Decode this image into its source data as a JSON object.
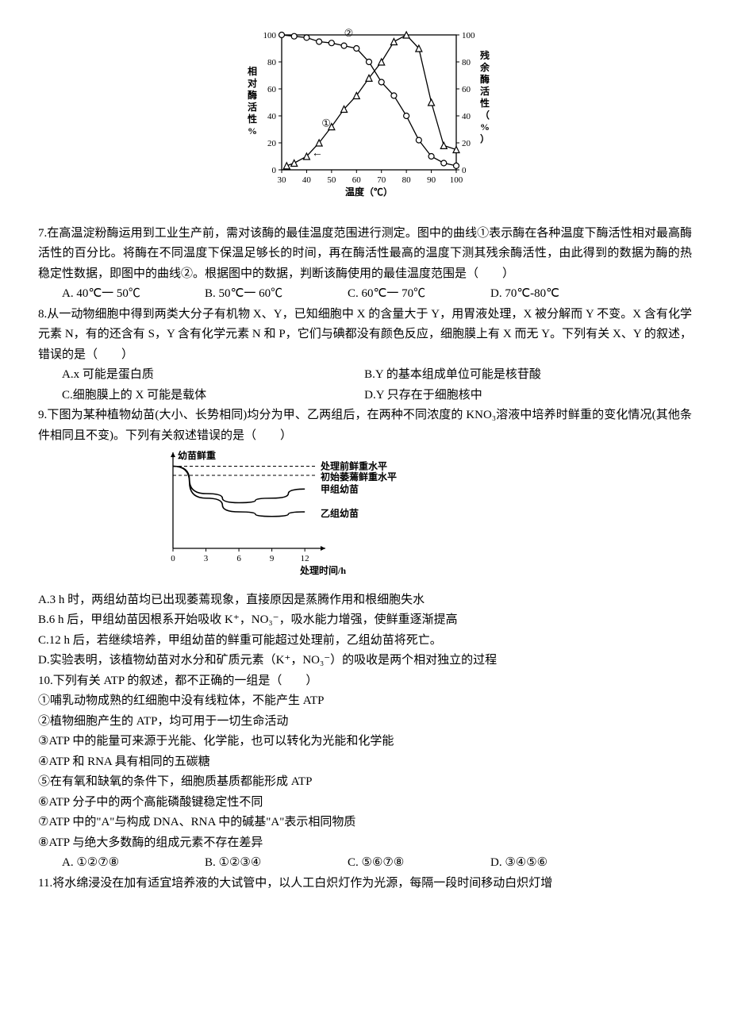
{
  "chart1": {
    "type": "line-dual-axis",
    "x_label": "温度（℃）",
    "y_left_label": "相对酶活性%",
    "y_right_label": "残余酶活性（%）",
    "x_range": [
      30,
      100
    ],
    "x_ticks": [
      30,
      40,
      50,
      60,
      70,
      80,
      90,
      100
    ],
    "y_range": [
      0,
      100
    ],
    "y_ticks": [
      0,
      20,
      40,
      60,
      80,
      100
    ],
    "series1_marker": "triangle",
    "series1_label": "①",
    "series1_points": [
      [
        32,
        3
      ],
      [
        35,
        5
      ],
      [
        40,
        10
      ],
      [
        45,
        20
      ],
      [
        50,
        32
      ],
      [
        55,
        45
      ],
      [
        60,
        55
      ],
      [
        65,
        68
      ],
      [
        70,
        80
      ],
      [
        75,
        95
      ],
      [
        80,
        100
      ],
      [
        85,
        90
      ],
      [
        90,
        50
      ],
      [
        95,
        18
      ],
      [
        100,
        15
      ]
    ],
    "series2_marker": "circle",
    "series2_label": "②",
    "series2_points": [
      [
        30,
        100
      ],
      [
        35,
        99
      ],
      [
        40,
        98
      ],
      [
        45,
        95
      ],
      [
        50,
        94
      ],
      [
        55,
        92
      ],
      [
        60,
        90
      ],
      [
        65,
        80
      ],
      [
        70,
        65
      ],
      [
        75,
        55
      ],
      [
        80,
        40
      ],
      [
        85,
        22
      ],
      [
        90,
        10
      ],
      [
        95,
        5
      ],
      [
        100,
        3
      ]
    ],
    "arrow_annotation": "←",
    "line_color": "#000000",
    "background_color": "#ffffff",
    "axis_fontsize": 11
  },
  "q7": {
    "stem": "7.在高温淀粉酶运用到工业生产前，需对该酶的最佳温度范围进行测定。图中的曲线①表示酶在各种温度下酶活性相对最高酶活性的百分比。将酶在不同温度下保温足够长的时间，再在酶活性最高的温度下测其残余酶活性，由此得到的数据为酶的热稳定性数据，即图中的曲线②。根据图中的数据，判断该酶使用的最佳温度范围是（　　）",
    "A": "A. 40℃一 50℃",
    "B": "B. 50℃一 60℃",
    "C": "C. 60℃一 70℃",
    "D": "D. 70℃-80℃"
  },
  "q8": {
    "stem": "8.从一动物细胞中得到两类大分子有机物 X、Y，已知细胞中 X 的含量大于 Y，用胃液处理，X 被分解而 Y 不变。X 含有化学元素 N，有的还含有 S，Y 含有化学元素 N 和 P，它们与碘都没有颜色反应，细胞膜上有 X 而无 Y。下列有关 X、Y 的叙述，错误的是（　　）",
    "A": "A.x 可能是蛋白质",
    "B": "B.Y 的基本组成单位可能是核苷酸",
    "C": "C.细胞膜上的 X 可能是载体",
    "D": "D.Y 只存在于细胞核中"
  },
  "chart2": {
    "type": "line",
    "y_label": "幼苗鲜重",
    "x_label": "处理时间/h",
    "x_ticks": [
      0,
      3,
      6,
      9,
      12
    ],
    "line_labels": {
      "dashed_top": "处理前鲜重水平",
      "dashed_mid": "初始萎蔫鲜重水平",
      "curve_top": "甲组幼苗",
      "curve_bottom": "乙组幼苗"
    },
    "curve_top_points": [
      [
        0,
        90
      ],
      [
        3,
        60
      ],
      [
        6,
        50
      ],
      [
        9,
        55
      ],
      [
        12,
        65
      ]
    ],
    "curve_bottom_points": [
      [
        0,
        90
      ],
      [
        3,
        55
      ],
      [
        6,
        40
      ],
      [
        9,
        35
      ],
      [
        12,
        40
      ]
    ],
    "dashed_top_y": 90,
    "dashed_mid_y": 80,
    "line_color": "#000000",
    "background_color": "#ffffff",
    "axis_fontsize": 11
  },
  "q9": {
    "stem": "9.下图为某种植物幼苗(大小、长势相同)均分为甲、乙两组后，在两种不同浓度的 KNO₃溶液中培养时鲜重的变化情况(其他条件相同且不变)。下列有关叙述错误的是（　　）",
    "A": "A.3 h 时，两组幼苗均已出现萎蔫现象，直接原因是蒸腾作用和根细胞失水",
    "B": "B.6 h 后，甲组幼苗因根系开始吸收 K⁺，NO₃⁻，吸水能力增强，使鲜重逐渐提高",
    "C": "C.12 h 后，若继续培养，甲组幼苗的鲜重可能超过处理前，乙组幼苗将死亡。",
    "D": "D.实验表明，该植物幼苗对水分和矿质元素（K⁺，NO₃⁻）的吸收是两个相对独立的过程"
  },
  "q10": {
    "stem": "10.下列有关 ATP 的叙述，都不正确的一组是（　　）",
    "s1": "①哺乳动物成熟的红细胞中没有线粒体，不能产生 ATP",
    "s2": "②植物细胞产生的 ATP，均可用于一切生命活动",
    "s3": "③ATP 中的能量可来源于光能、化学能，也可以转化为光能和化学能",
    "s4": "④ATP 和 RNA 具有相同的五碳糖",
    "s5": "⑤在有氧和缺氧的条件下，细胞质基质都能形成 ATP",
    "s6": "⑥ATP 分子中的两个高能磷酸键稳定性不同",
    "s7": "⑦ATP 中的\"A\"与构成 DNA、RNA 中的碱基\"A\"表示相同物质",
    "s8": "⑧ATP 与绝大多数酶的组成元素不存在差异",
    "A": "A. ①②⑦⑧",
    "B": "B. ①②③④",
    "C": "C. ⑤⑥⑦⑧",
    "D": "D. ③④⑤⑥"
  },
  "q11": {
    "stem": "11.将水绵浸没在加有适宜培养液的大试管中，以人工白炽灯作为光源，每隔一段时间移动白炽灯增"
  }
}
